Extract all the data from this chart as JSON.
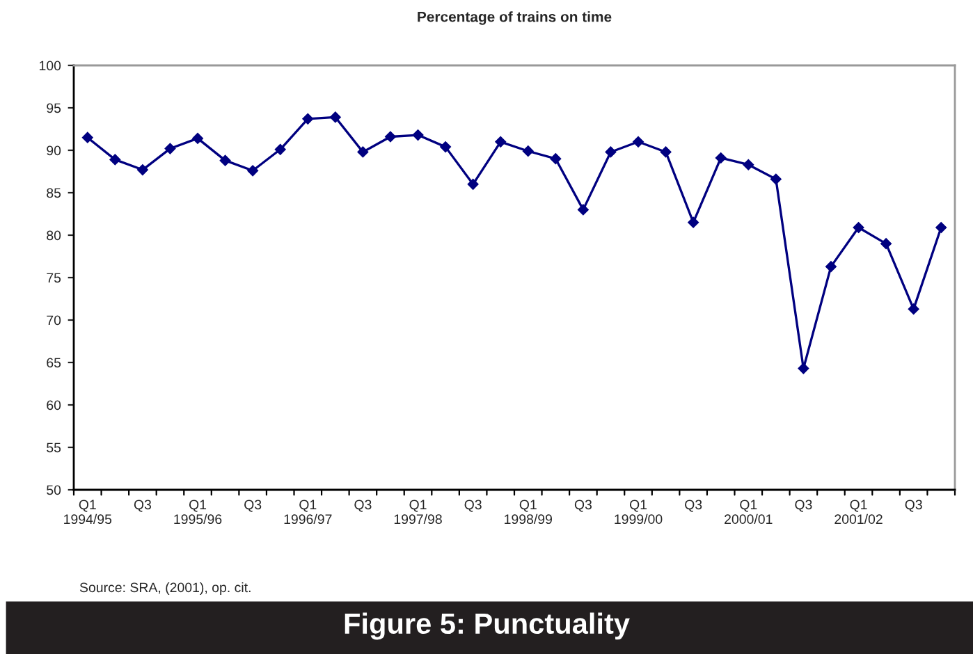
{
  "chart_data": {
    "type": "line",
    "title": "Percentage of trains on time",
    "categories": [
      "Q1\n1994/95",
      null,
      "Q3",
      null,
      "Q1\n1995/96",
      null,
      "Q3",
      null,
      "Q1\n1996/97",
      null,
      "Q3",
      null,
      "Q1\n1997/98",
      null,
      "Q3",
      null,
      "Q1\n1998/99",
      null,
      "Q3",
      null,
      "Q1\n1999/00",
      null,
      "Q3",
      null,
      "Q1\n2000/01",
      null,
      "Q3",
      null,
      "Q1\n2001/02",
      null,
      "Q3",
      null
    ],
    "series": [
      {
        "color": "#000080",
        "values": [
          91.5,
          88.9,
          87.7,
          90.2,
          91.4,
          88.8,
          87.6,
          90.1,
          93.7,
          93.9,
          89.8,
          91.6,
          91.8,
          90.4,
          86.0,
          91.0,
          89.9,
          89.0,
          83.0,
          89.8,
          91.0,
          89.8,
          81.5,
          89.1,
          88.3,
          86.6,
          64.3,
          76.3,
          80.9,
          79.0,
          71.3,
          80.9
        ]
      }
    ],
    "ylim": [
      50,
      100
    ],
    "yticks": [
      50,
      55,
      60,
      65,
      70,
      75,
      80,
      85,
      90,
      95,
      100
    ],
    "grid": false,
    "marker": "diamond",
    "line_style": "solid",
    "annotations": [
      "Source: SRA, (2001), op. cit.",
      "Figure 5: Punctuality"
    ]
  }
}
